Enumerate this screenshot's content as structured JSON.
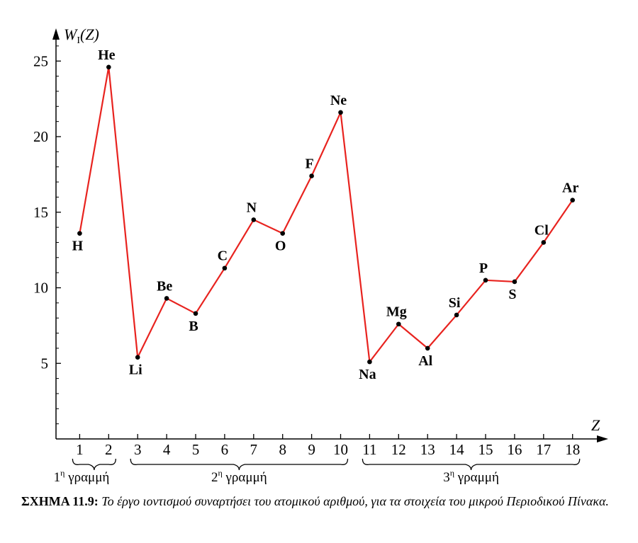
{
  "chart_data": {
    "type": "line",
    "title": "",
    "xlabel": "Z",
    "ylabel": "W_I(Z)",
    "ylabel_main": "W",
    "ylabel_sub": "I",
    "ylabel_rest": "(Z)",
    "xlim": [
      0,
      19
    ],
    "ylim": [
      0,
      27
    ],
    "x": [
      1,
      2,
      3,
      4,
      5,
      6,
      7,
      8,
      9,
      10,
      11,
      12,
      13,
      14,
      15,
      16,
      17,
      18
    ],
    "values": [
      13.6,
      24.6,
      5.4,
      9.3,
      8.3,
      11.3,
      14.5,
      13.6,
      17.4,
      21.6,
      5.1,
      7.6,
      6.0,
      8.2,
      10.5,
      10.4,
      13.0,
      15.8
    ],
    "elements": [
      "H",
      "He",
      "Li",
      "Be",
      "B",
      "C",
      "N",
      "O",
      "F",
      "Ne",
      "Na",
      "Mg",
      "Al",
      "Si",
      "P",
      "S",
      "Cl",
      "Ar"
    ],
    "label_positions": [
      "below",
      "above",
      "below",
      "above",
      "below",
      "above",
      "above",
      "below",
      "above",
      "above",
      "below",
      "above",
      "below",
      "above",
      "above",
      "below",
      "above",
      "above"
    ],
    "x_ticks": [
      1,
      2,
      3,
      4,
      5,
      6,
      7,
      8,
      9,
      10,
      11,
      12,
      13,
      14,
      15,
      16,
      17,
      18
    ],
    "y_ticks": [
      5,
      10,
      15,
      20,
      25
    ],
    "series_color": "#e8231f",
    "groups": [
      {
        "label_num": "1",
        "label_sup": "η",
        "label_word": "γραμμή",
        "from": 1,
        "to": 2
      },
      {
        "label_num": "2",
        "label_sup": "η",
        "label_word": "γραμμή",
        "from": 3,
        "to": 10
      },
      {
        "label_num": "3",
        "label_sup": "η",
        "label_word": "γραμμή",
        "from": 11,
        "to": 18
      }
    ]
  },
  "caption": {
    "bold": "ΣΧΗΜΑ 11.9:",
    "text": "Το έργο ιοντισμού συναρτήσει του ατομικού αριθμού, για τα στοιχεία του μικρού Περιοδικού Πίνακα."
  }
}
